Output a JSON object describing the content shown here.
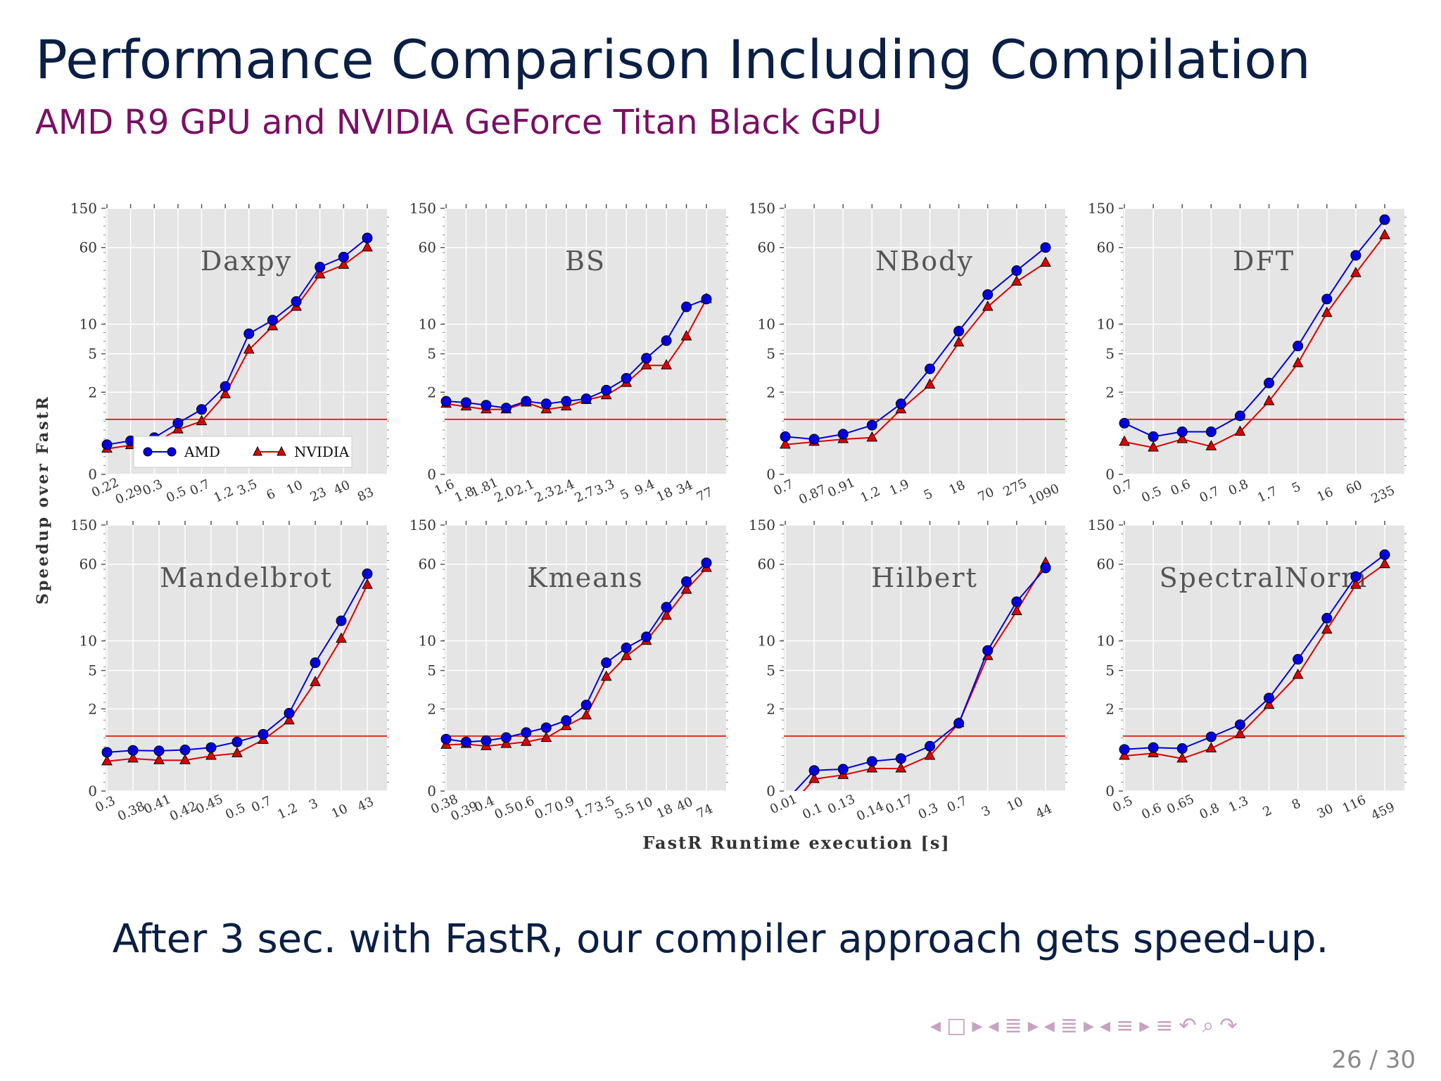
{
  "slide": {
    "title": "Performance Comparison Including Compilation",
    "subtitle": "AMD R9 GPU and NVIDIA GeForce Titan Black GPU",
    "caption": "After 3 sec. with FastR, our compiler approach gets speed-up.",
    "page_number": "26 / 30",
    "nav_icons": [
      "nav-prev-icon",
      "frame-icon",
      "nav-next-icon",
      "nav-prev-icon",
      "subsection-icon",
      "nav-next-icon",
      "nav-prev-icon",
      "section-icon",
      "nav-next-icon",
      "nav-prev-icon",
      "align-icon",
      "nav-next-icon",
      "align-icon",
      "undo-icon",
      "search-icon",
      "redo-icon"
    ]
  },
  "colors": {
    "amd": "#0000dd",
    "nvidia": "#dd0000",
    "baseline": "#e0301e",
    "panel_bg": "#e5e5e5",
    "title_color": "#0b1f45",
    "subtitle_color": "#7a1063"
  },
  "chart_data": {
    "type": "line",
    "ylabel": "Speedup over FastR",
    "xlabel": "FastR Runtime execution [s]",
    "y_scale": "symlog",
    "y_ticks": [
      0,
      2,
      5,
      10,
      60,
      150
    ],
    "y_tick_labels": [
      "0",
      "2",
      "5",
      "10",
      "60",
      "150"
    ],
    "ylim": [
      0,
      150
    ],
    "baseline_y": 1,
    "grid": true,
    "legend": {
      "entries": [
        "AMD",
        "NVIDIA"
      ],
      "placement": "lower-center of first panel"
    },
    "panels": [
      {
        "title": "Daxpy",
        "categories": [
          "0.22",
          "0.29",
          "0.3",
          "0.5",
          "0.7",
          "1.2",
          "3.5",
          "6",
          "10",
          "23",
          "40",
          "83"
        ],
        "series": [
          {
            "name": "AMD",
            "values": [
              0.45,
              0.52,
              0.58,
              0.9,
              1.3,
              2.3,
              8,
              11,
              17,
              38,
              48,
              75
            ]
          },
          {
            "name": "NVIDIA",
            "values": [
              0.38,
              0.44,
              0.48,
              0.75,
              0.95,
              1.9,
              5.5,
              9.5,
              15,
              32,
              40,
              60
            ]
          }
        ]
      },
      {
        "title": "BS",
        "categories": [
          "1.6",
          "1.8",
          "1.81",
          "2.0",
          "2.1",
          "2.3",
          "2.4",
          "2.7",
          "3.3",
          "5",
          "9.4",
          "18",
          "34",
          "77"
        ],
        "series": [
          {
            "name": "AMD",
            "values": [
              1.6,
              1.55,
              1.45,
              1.35,
              1.6,
              1.5,
              1.6,
              1.7,
              2.1,
              2.8,
              4.5,
              6.8,
              15,
              18
            ]
          },
          {
            "name": "NVIDIA",
            "values": [
              1.5,
              1.4,
              1.3,
              1.3,
              1.55,
              1.3,
              1.4,
              1.65,
              1.85,
              2.5,
              3.8,
              3.8,
              7.5,
              18
            ]
          }
        ]
      },
      {
        "title": "NBody",
        "categories": [
          "0.7",
          "0.87",
          "0.91",
          "1.2",
          "1.9",
          "5",
          "18",
          "70",
          "275",
          "1090"
        ],
        "series": [
          {
            "name": "AMD",
            "values": [
              0.6,
              0.55,
              0.65,
              0.85,
              1.5,
              3.5,
              8.5,
              20,
              35,
              60
            ]
          },
          {
            "name": "NVIDIA",
            "values": [
              0.45,
              0.5,
              0.55,
              0.58,
              1.3,
              2.4,
              6.5,
              15,
              27,
              42
            ]
          }
        ]
      },
      {
        "title": "DFT",
        "categories": [
          "0.7",
          "0.5",
          "0.6",
          "0.7",
          "0.8",
          "1.7",
          "5",
          "16",
          "60",
          "235"
        ],
        "series": [
          {
            "name": "AMD",
            "values": [
              0.9,
              0.6,
              0.7,
              0.7,
              1.1,
              2.5,
              6,
              18,
              50,
              115
            ]
          },
          {
            "name": "NVIDIA",
            "values": [
              0.5,
              0.4,
              0.55,
              0.42,
              0.7,
              1.6,
              4,
              13,
              33,
              80
            ]
          }
        ]
      },
      {
        "title": "Mandelbrot",
        "categories": [
          "0.3",
          "0.38",
          "0.41",
          "0.42",
          "0.45",
          "0.5",
          "0.7",
          "1.2",
          "3",
          "10",
          "43"
        ],
        "series": [
          {
            "name": "AMD",
            "values": [
              0.62,
              0.66,
              0.65,
              0.67,
              0.72,
              0.85,
              1.05,
              1.8,
              6,
              16,
              48
            ]
          },
          {
            "name": "NVIDIA",
            "values": [
              0.45,
              0.5,
              0.47,
              0.47,
              0.55,
              0.6,
              0.9,
              1.5,
              3.8,
              10.5,
              37
            ]
          }
        ]
      },
      {
        "title": "Kmeans",
        "categories": [
          "0.38",
          "0.39",
          "0.4",
          "0.5",
          "0.6",
          "0.7",
          "0.9",
          "1.7",
          "3.5",
          "5.5",
          "10",
          "18",
          "40",
          "74"
        ],
        "series": [
          {
            "name": "AMD",
            "values": [
              0.92,
              0.85,
              0.88,
              0.96,
              1.1,
              1.25,
              1.5,
              2.2,
              6,
              8.5,
              11,
              22,
              40,
              62
            ]
          },
          {
            "name": "NVIDIA",
            "values": [
              0.78,
              0.8,
              0.75,
              0.8,
              0.85,
              0.95,
              1.3,
              1.7,
              4.3,
              7,
              10,
              18,
              33,
              55
            ]
          }
        ]
      },
      {
        "title": "Hilbert",
        "categories": [
          "0.01",
          "0.1",
          "0.13",
          "0.14",
          "0.17",
          "0.3",
          "0.7",
          "3",
          "10",
          "44"
        ],
        "series": [
          {
            "name": "AMD",
            "values": [
              -0.15,
              0.3,
              0.32,
              0.45,
              0.5,
              0.75,
              1.4,
              8,
              25,
              55
            ]
          },
          {
            "name": "NVIDIA",
            "values": [
              -0.3,
              0.17,
              0.23,
              0.33,
              0.33,
              0.55,
              1.4,
              7,
              20,
              62
            ]
          }
        ]
      },
      {
        "title": "SpectralNorm",
        "categories": [
          "0.5",
          "0.6",
          "0.65",
          "0.8",
          "1.3",
          "2",
          "8",
          "30",
          "116",
          "459"
        ],
        "series": [
          {
            "name": "AMD",
            "values": [
              0.68,
              0.72,
              0.7,
              0.98,
              1.35,
              2.6,
              6.5,
              17,
              45,
              75
            ]
          },
          {
            "name": "NVIDIA",
            "values": [
              0.55,
              0.6,
              0.5,
              0.7,
              1.05,
              2.2,
              4.5,
              13,
              37,
              60
            ]
          }
        ]
      }
    ]
  }
}
